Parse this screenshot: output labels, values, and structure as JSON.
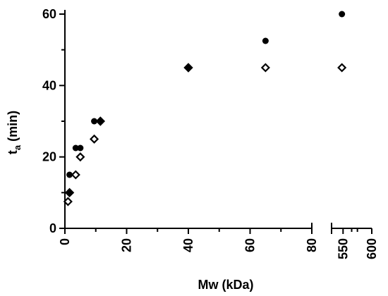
{
  "chart_data": {
    "type": "scatter",
    "xlabel": "Mw (kDa)",
    "ylabel": "t",
    "ylabel_sub": "a",
    "ylabel_unit": " (min)",
    "y_ticks": [
      "0",
      "20",
      "40",
      "60"
    ],
    "y_range": [
      0,
      60
    ],
    "x_axis_segments": [
      {
        "range": [
          0,
          80
        ],
        "ticks": [
          "0",
          "20",
          "40",
          "60",
          "80"
        ]
      },
      {
        "range": [
          530,
          600
        ],
        "ticks": [
          "550",
          "600"
        ]
      }
    ],
    "x_axis_break": true,
    "grid": false,
    "legend": "none",
    "series": [
      {
        "marker": "filled-circle",
        "points": [
          {
            "x": 1.5,
            "y": 10
          },
          {
            "x": 1.5,
            "y": 15
          },
          {
            "x": 3.5,
            "y": 22.5
          },
          {
            "x": 5,
            "y": 22.5
          },
          {
            "x": 9.5,
            "y": 30
          },
          {
            "x": 65,
            "y": 52.5
          },
          {
            "x": 548,
            "y": 60
          }
        ]
      },
      {
        "marker": "open-diamond",
        "points": [
          {
            "x": 1,
            "y": 7.5
          },
          {
            "x": 3.5,
            "y": 15
          },
          {
            "x": 5,
            "y": 20
          },
          {
            "x": 9.5,
            "y": 25
          },
          {
            "x": 65,
            "y": 45
          },
          {
            "x": 548,
            "y": 45
          }
        ]
      },
      {
        "marker": "filled-diamond",
        "points": [
          {
            "x": 1.5,
            "y": 10
          },
          {
            "x": 11.5,
            "y": 30
          },
          {
            "x": 40,
            "y": 45
          }
        ]
      }
    ]
  }
}
